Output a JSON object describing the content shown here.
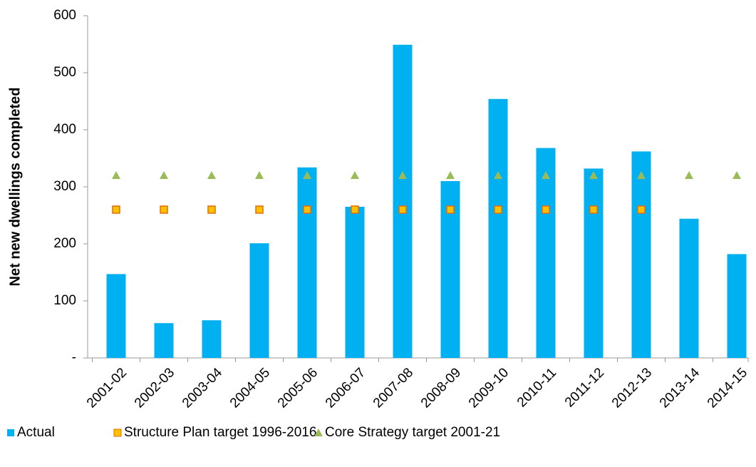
{
  "chart_data": {
    "type": "bar",
    "y_label": "Net  new dwellings completed",
    "categories": [
      "2001-02",
      "2002-03",
      "2003-04",
      "2004-05",
      "2005-06",
      "2006-07",
      "2007-08",
      "2008-09",
      "2009-10",
      "2010-11",
      "2011-12",
      "2012-13",
      "2013-14",
      "2014-15"
    ],
    "series": [
      {
        "name": "Actual",
        "color": "#00b0f0",
        "marker": "bar",
        "values": [
          147,
          61,
          66,
          201,
          334,
          265,
          549,
          310,
          454,
          368,
          332,
          362,
          244,
          182
        ]
      },
      {
        "name": "Structure Plan target 1996-2016",
        "color": "#ffc000",
        "marker": "square",
        "values": [
          260,
          260,
          260,
          260,
          260,
          260,
          260,
          260,
          260,
          260,
          260,
          260,
          null,
          null
        ]
      },
      {
        "name": "Core Strategy target 2001-21",
        "color": "#9bbb59",
        "marker": "triangle",
        "values": [
          320,
          320,
          320,
          320,
          320,
          320,
          320,
          320,
          320,
          320,
          320,
          320,
          320,
          320
        ]
      }
    ],
    "ylim": [
      0,
      600
    ],
    "yticks": [
      {
        "value": 0,
        "label": "-"
      },
      100,
      200,
      300,
      400,
      500,
      600
    ],
    "grid": false
  }
}
